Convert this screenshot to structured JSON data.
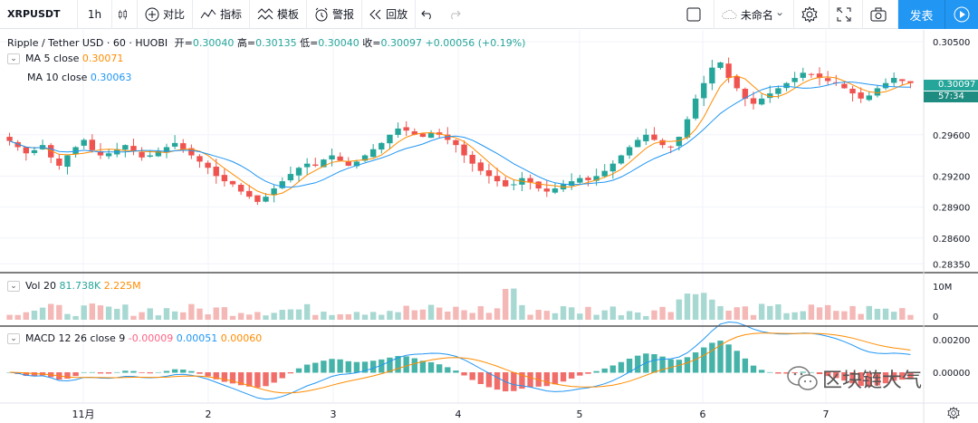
{
  "toolbar": {
    "symbol": "XRPUSDT",
    "interval": "1h",
    "compare": "对比",
    "indicators": "指标",
    "templates": "模板",
    "alert": "警报",
    "replay": "回放",
    "layout_name": "未命名",
    "publish": "发表"
  },
  "legend": {
    "title": "Ripple / Tether USD · 60 · HUOBI",
    "open_label": "开=",
    "open": "0.30040",
    "high_label": "高=",
    "high": "0.30135",
    "low_label": "低=",
    "low": "0.30040",
    "close_label": "收=",
    "close": "0.30097",
    "change": "+0.00056 (+0.19%)",
    "ma5_label": "MA 5 close",
    "ma5_value": "0.30071",
    "ma10_label": "MA 10 close",
    "ma10_value": "0.30063",
    "vol_label": "Vol 20",
    "vol_value1": "81.738K",
    "vol_value2": "2.225M",
    "macd_label": "MACD 12 26 close 9",
    "macd_v1": "-0.00009",
    "macd_v2": "0.00051",
    "macd_v3": "0.00060"
  },
  "price_badge": {
    "price": "0.30097",
    "countdown": "57:34"
  },
  "price_axis": [
    "0.30500",
    "0.29600",
    "0.29200",
    "0.28900",
    "0.28600",
    "0.28350"
  ],
  "vol_axis": [
    "10M",
    "0"
  ],
  "macd_axis": [
    "0.00200",
    "0.00000"
  ],
  "time_axis": [
    "11月",
    "2",
    "3",
    "4",
    "5",
    "6",
    "7"
  ],
  "watermark": "区块链大气",
  "colors": {
    "up": "#26a69a",
    "down": "#ef5350",
    "ma5": "#ff8c00",
    "ma10": "#2196f3",
    "accent": "#2196f3"
  },
  "chart_data": {
    "type": "candlestick",
    "series": [
      {
        "name": "MA 5 close"
      },
      {
        "name": "MA 10 close"
      }
    ],
    "candles_close_approx": [
      0.2954,
      0.2948,
      0.2942,
      0.2945,
      0.295,
      0.2938,
      0.293,
      0.294,
      0.2948,
      0.2955,
      0.2945,
      0.294,
      0.2942,
      0.2946,
      0.295,
      0.2944,
      0.2938,
      0.294,
      0.2944,
      0.2948,
      0.2952,
      0.2946,
      0.294,
      0.2934,
      0.2928,
      0.292,
      0.2915,
      0.2912,
      0.2905,
      0.29,
      0.2895,
      0.29,
      0.2908,
      0.2915,
      0.2922,
      0.2928,
      0.2932,
      0.293,
      0.2936,
      0.294,
      0.2935,
      0.293,
      0.2934,
      0.294,
      0.2946,
      0.2952,
      0.296,
      0.2966,
      0.2964,
      0.296,
      0.2958,
      0.2962,
      0.296,
      0.2955,
      0.295,
      0.294,
      0.2932,
      0.2925,
      0.292,
      0.2915,
      0.291,
      0.2912,
      0.2918,
      0.2914,
      0.2908,
      0.2905,
      0.2908,
      0.2912,
      0.2915,
      0.2918,
      0.2916,
      0.292,
      0.2925,
      0.2932,
      0.294,
      0.2948,
      0.2955,
      0.296,
      0.2955,
      0.295,
      0.2948,
      0.2958,
      0.2975,
      0.2995,
      0.301,
      0.3025,
      0.303,
      0.3015,
      0.3005,
      0.2995,
      0.299,
      0.2995,
      0.3,
      0.3005,
      0.301,
      0.3015,
      0.302,
      0.3018,
      0.3015,
      0.3012,
      0.301,
      0.3005,
      0.3,
      0.2995,
      0.2998,
      0.3005,
      0.301,
      0.3015,
      0.3012,
      0.301
    ]
  }
}
